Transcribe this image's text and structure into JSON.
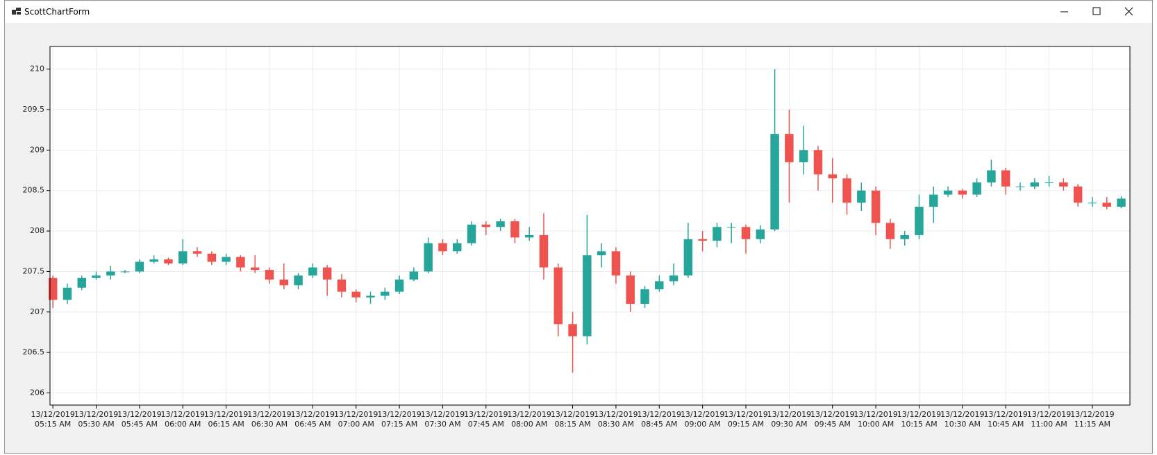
{
  "window": {
    "title": "ScottChartForm"
  },
  "chart_data": {
    "type": "candlestick",
    "x": [
      "13/12/2019 05:15 AM",
      "13/12/2019 05:20 AM",
      "13/12/2019 05:25 AM",
      "13/12/2019 05:30 AM",
      "13/12/2019 05:35 AM",
      "13/12/2019 05:40 AM",
      "13/12/2019 05:45 AM",
      "13/12/2019 05:50 AM",
      "13/12/2019 05:55 AM",
      "13/12/2019 06:00 AM",
      "13/12/2019 06:05 AM",
      "13/12/2019 06:10 AM",
      "13/12/2019 06:15 AM",
      "13/12/2019 06:20 AM",
      "13/12/2019 06:25 AM",
      "13/12/2019 06:30 AM",
      "13/12/2019 06:35 AM",
      "13/12/2019 06:40 AM",
      "13/12/2019 06:45 AM",
      "13/12/2019 06:50 AM",
      "13/12/2019 06:55 AM",
      "13/12/2019 07:00 AM",
      "13/12/2019 07:05 AM",
      "13/12/2019 07:10 AM",
      "13/12/2019 07:15 AM",
      "13/12/2019 07:20 AM",
      "13/12/2019 07:25 AM",
      "13/12/2019 07:30 AM",
      "13/12/2019 07:35 AM",
      "13/12/2019 07:40 AM",
      "13/12/2019 07:45 AM",
      "13/12/2019 07:50 AM",
      "13/12/2019 07:55 AM",
      "13/12/2019 08:00 AM",
      "13/12/2019 08:05 AM",
      "13/12/2019 08:10 AM",
      "13/12/2019 08:15 AM",
      "13/12/2019 08:20 AM",
      "13/12/2019 08:25 AM",
      "13/12/2019 08:30 AM",
      "13/12/2019 08:35 AM",
      "13/12/2019 08:40 AM",
      "13/12/2019 08:45 AM",
      "13/12/2019 08:50 AM",
      "13/12/2019 08:55 AM",
      "13/12/2019 09:00 AM",
      "13/12/2019 09:05 AM",
      "13/12/2019 09:10 AM",
      "13/12/2019 09:15 AM",
      "13/12/2019 09:20 AM",
      "13/12/2019 09:25 AM",
      "13/12/2019 09:30 AM",
      "13/12/2019 09:35 AM",
      "13/12/2019 09:40 AM",
      "13/12/2019 09:45 AM",
      "13/12/2019 09:50 AM",
      "13/12/2019 09:55 AM",
      "13/12/2019 10:00 AM",
      "13/12/2019 10:05 AM",
      "13/12/2019 10:10 AM",
      "13/12/2019 10:15 AM",
      "13/12/2019 10:20 AM",
      "13/12/2019 10:25 AM",
      "13/12/2019 10:30 AM",
      "13/12/2019 10:35 AM",
      "13/12/2019 10:40 AM",
      "13/12/2019 10:45 AM",
      "13/12/2019 10:50 AM",
      "13/12/2019 10:55 AM",
      "13/12/2019 11:00 AM",
      "13/12/2019 11:05 AM",
      "13/12/2019 11:10 AM",
      "13/12/2019 11:15 AM",
      "13/12/2019 11:20 AM",
      "13/12/2019 11:25 AM"
    ],
    "open": [
      207.42,
      207.15,
      207.3,
      207.42,
      207.45,
      207.5,
      207.5,
      207.62,
      207.65,
      207.6,
      207.75,
      207.72,
      207.62,
      207.68,
      207.55,
      207.52,
      207.4,
      207.33,
      207.45,
      207.55,
      207.4,
      207.25,
      207.18,
      207.2,
      207.25,
      207.4,
      207.5,
      207.85,
      207.75,
      207.85,
      208.08,
      208.05,
      208.12,
      207.92,
      207.95,
      207.55,
      206.85,
      206.7,
      207.7,
      207.75,
      207.45,
      207.1,
      207.28,
      207.38,
      207.45,
      207.9,
      207.88,
      208.05,
      208.05,
      207.9,
      208.02,
      209.2,
      208.85,
      209.0,
      208.7,
      208.65,
      208.35,
      208.5,
      208.1,
      207.9,
      207.95,
      208.3,
      208.45,
      208.5,
      208.45,
      208.6,
      208.75,
      208.55,
      208.55,
      208.6,
      208.6,
      208.55,
      208.35,
      208.35,
      208.3
    ],
    "high": [
      207.45,
      207.35,
      207.45,
      207.5,
      207.57,
      207.52,
      207.65,
      207.7,
      207.67,
      207.9,
      207.8,
      207.75,
      207.72,
      207.7,
      207.7,
      207.55,
      207.6,
      207.48,
      207.6,
      207.58,
      207.47,
      207.28,
      207.25,
      207.3,
      207.45,
      207.55,
      207.92,
      207.9,
      207.9,
      208.12,
      208.12,
      208.15,
      208.15,
      208.05,
      208.22,
      207.6,
      207.0,
      208.2,
      207.85,
      207.8,
      207.5,
      207.32,
      207.45,
      207.6,
      208.1,
      208.0,
      208.1,
      208.1,
      208.08,
      208.07,
      210.0,
      209.5,
      209.3,
      209.05,
      208.9,
      208.7,
      208.6,
      208.55,
      208.15,
      208.0,
      208.45,
      208.55,
      208.55,
      208.52,
      208.65,
      208.88,
      208.78,
      208.6,
      208.65,
      208.68,
      208.65,
      208.58,
      208.42,
      208.42,
      208.43
    ],
    "low": [
      207.05,
      207.1,
      207.27,
      207.4,
      207.4,
      207.48,
      207.48,
      207.6,
      207.58,
      207.58,
      207.68,
      207.58,
      207.58,
      207.5,
      207.48,
      207.35,
      207.28,
      207.28,
      207.42,
      207.2,
      207.18,
      207.12,
      207.1,
      207.15,
      207.22,
      207.38,
      207.48,
      207.7,
      207.72,
      207.82,
      207.95,
      208.0,
      207.85,
      207.88,
      207.4,
      206.7,
      206.25,
      206.6,
      207.55,
      207.35,
      207.0,
      207.05,
      207.25,
      207.33,
      207.42,
      207.75,
      207.8,
      207.85,
      207.72,
      207.85,
      208.0,
      208.35,
      208.7,
      208.5,
      208.35,
      208.2,
      208.25,
      207.95,
      207.78,
      207.82,
      207.9,
      208.1,
      208.42,
      208.4,
      208.42,
      208.55,
      208.45,
      208.5,
      208.52,
      208.55,
      208.5,
      208.3,
      208.3,
      208.27,
      208.28
    ],
    "close": [
      207.15,
      207.3,
      207.42,
      207.45,
      207.5,
      207.5,
      207.62,
      207.65,
      207.6,
      207.75,
      207.72,
      207.62,
      207.68,
      207.55,
      207.52,
      207.4,
      207.33,
      207.45,
      207.55,
      207.4,
      207.25,
      207.18,
      207.2,
      207.25,
      207.4,
      207.5,
      207.85,
      207.75,
      207.85,
      208.08,
      208.05,
      208.12,
      207.92,
      207.95,
      207.55,
      206.85,
      206.7,
      207.7,
      207.75,
      207.45,
      207.1,
      207.28,
      207.38,
      207.45,
      207.9,
      207.88,
      208.05,
      208.05,
      207.9,
      208.02,
      209.2,
      208.85,
      209.0,
      208.7,
      208.65,
      208.35,
      208.5,
      208.1,
      207.9,
      207.95,
      208.3,
      208.45,
      208.5,
      208.45,
      208.6,
      208.75,
      208.55,
      208.55,
      208.6,
      208.6,
      208.55,
      208.35,
      208.35,
      208.3,
      208.4
    ],
    "up_color": "#26a69a",
    "down_color": "#ef5350",
    "xlim": [
      "13/12/2019 05:14 AM",
      "13/12/2019 11:28 AM"
    ],
    "xticks": [
      "13/12/2019 05:15 AM",
      "13/12/2019 05:30 AM",
      "13/12/2019 05:45 AM",
      "13/12/2019 06:00 AM",
      "13/12/2019 06:15 AM",
      "13/12/2019 06:30 AM",
      "13/12/2019 06:45 AM",
      "13/12/2019 07:00 AM",
      "13/12/2019 07:15 AM",
      "13/12/2019 07:30 AM",
      "13/12/2019 07:45 AM",
      "13/12/2019 08:00 AM",
      "13/12/2019 08:15 AM",
      "13/12/2019 08:30 AM",
      "13/12/2019 08:45 AM",
      "13/12/2019 09:00 AM",
      "13/12/2019 09:15 AM",
      "13/12/2019 09:30 AM",
      "13/12/2019 09:45 AM",
      "13/12/2019 10:00 AM",
      "13/12/2019 10:15 AM",
      "13/12/2019 10:30 AM",
      "13/12/2019 10:45 AM",
      "13/12/2019 11:00 AM",
      "13/12/2019 11:15 AM"
    ],
    "ylim": [
      205.85,
      210.28
    ],
    "yticks": [
      206,
      206.5,
      207,
      207.5,
      208,
      208.5,
      209,
      209.5,
      210
    ],
    "grid": true
  }
}
